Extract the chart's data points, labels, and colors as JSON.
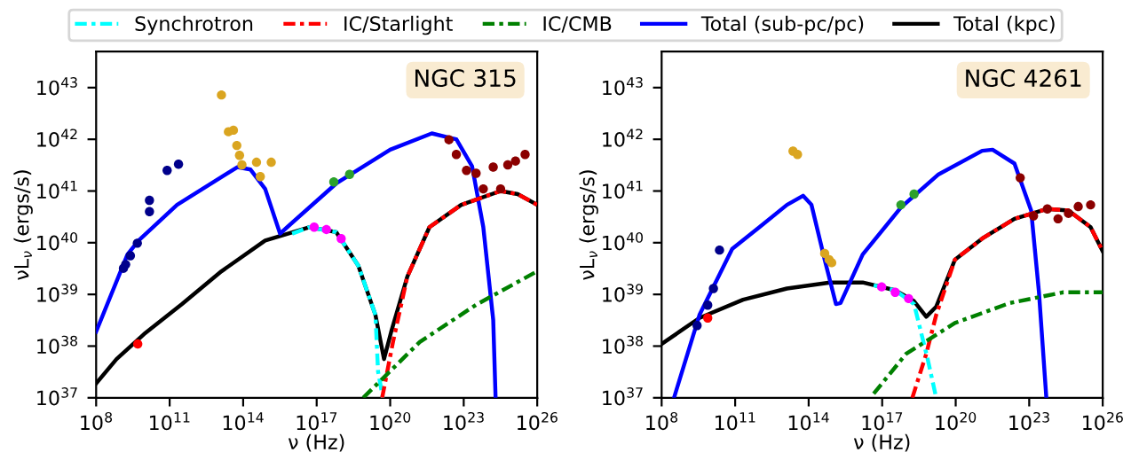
{
  "chart_data": [
    {
      "type": "line",
      "xlabel": "ν (Hz)",
      "ylabel": "νL$_{ν}$ (ergs/s)",
      "log": "xy",
      "legend": "top",
      "annotations": [
        "NGC 315"
      ],
      "xlim": [
        100000000.0,
        1e+26
      ],
      "ylim": [
        1e+37,
        5e+43
      ],
      "xticks": [
        {
          "value": 100000000.0,
          "label": "10$^{8}$"
        },
        {
          "value": 100000000000.0,
          "label": "10$^{11}$"
        },
        {
          "value": 100000000000000.0,
          "label": "10$^{14}$"
        },
        {
          "value": 1e+17,
          "label": "10$^{17}$"
        },
        {
          "value": 1e+20,
          "label": "10$^{20}$"
        },
        {
          "value": 1e+23,
          "label": "10$^{23}$"
        },
        {
          "value": 1e+26,
          "label": "10$^{26}$"
        }
      ],
      "yticks": [
        {
          "value": 1e+37,
          "label": "10$^{37}$"
        },
        {
          "value": 1e+38,
          "label": "10$^{38}$"
        },
        {
          "value": 1e+39,
          "label": "10$^{39}$"
        },
        {
          "value": 1e+40,
          "label": "10$^{40}$"
        },
        {
          "value": 1e+41,
          "label": "10$^{41}$"
        },
        {
          "value": 1e+42,
          "label": "10$^{42}$"
        },
        {
          "value": 1e+43,
          "label": "10$^{43}$"
        }
      ],
      "series": [
        {
          "name": "Total (kpc)",
          "color": "#000000",
          "line_style": "solid",
          "x": [
            100000000.0,
            680000000.0,
            8900000000.0,
            320000000000.0,
            13000000000000.0,
            790000000000000.0,
            5e+16,
            6.3e+17,
            5e+18,
            2.5e+19,
            5.6e+19,
            1.1e+20,
            5e+20,
            4e+21,
            7.9e+22,
            3.2e+24,
            1.6e+25,
            1e+26
          ],
          "values": [
            1.9e+37,
            5.6e+37,
            1.7e+38,
            6.5e+38,
            2.8e+39,
            1.1e+40,
            2e+40,
            1.6e+40,
            3.6e+39,
            4e+38,
            5.6e+37,
            1.9e+38,
            2.2e+39,
            2e+40,
            5.4e+40,
            1e+41,
            8.7e+40,
            5.4e+40
          ]
        },
        {
          "name": "Synchrotron",
          "color": "#00ffff",
          "line_style": "dashdot",
          "x": [
            1e+16,
            5e+16,
            6.3e+17,
            5e+18,
            2.5e+19,
            3.2e+19,
            5e+19
          ],
          "values": [
            1.5e+40,
            2e+40,
            1.6e+40,
            3.6e+39,
            4e+38,
            3.2e+37,
            1e+37
          ]
        },
        {
          "name": "IC/Starlight",
          "color": "#ff0000",
          "line_style": "dashdot",
          "x": [
            4.7e+19,
            1.3e+20,
            5e+20,
            4e+21,
            7.9e+22,
            3.2e+24,
            1.6e+25,
            1e+26
          ],
          "values": [
            1e+37,
            1.2e+38,
            2.2e+39,
            2e+40,
            5.4e+40,
            1e+41,
            8.7e+40,
            5.4e+40
          ]
        },
        {
          "name": "IC/CMB",
          "color": "#008000",
          "line_style": "dashdot",
          "x": [
            7.9e+18,
            1.6e+21,
            3.2e+23,
            1e+26
          ],
          "values": [
            1e+37,
            1.2e+38,
            6.3e+38,
            2.8e+39
          ]
        },
        {
          "name": "Total (sub-pc/pc)",
          "color": "#0000ff",
          "line_style": "solid",
          "x": [
            100000000.0,
            1900000000.0,
            5400000000.0,
            200000000000.0,
            58000000000000.0,
            200000000000000.0,
            790000000000000.0,
            3200000000000000.0,
            6300000000000000.0,
            6.3e+17,
            1e+20,
            5e+21,
            5e+22,
            2.2e+23,
            6.3e+23,
            1.6e+24,
            2e+24
          ],
          "values": [
            1.9e+38,
            5.9e+39,
            1.1e+40,
            5.4e+40,
            2.9e+41,
            2.6e+41,
            1.1e+41,
            1.5e+40,
            2e+40,
            1.4e+41,
            6.3e+41,
            1.3e+42,
            1e+42,
            3e+41,
            2e+40,
            3.2e+38,
            1e+37
          ]
        },
        {
          "type": "scatter",
          "color": "#00008b",
          "marker": "circle",
          "x": [
            1300000000.0,
            1600000000.0,
            2500000000.0,
            4800000000.0,
            15000000000.0,
            15000000000.0,
            79000000000.0,
            230000000000.0
          ],
          "values": [
            3.2e+39,
            3.8e+39,
            5.6e+39,
            9.8e+39,
            6.6e+40,
            4e+40,
            2.5e+41,
            3.3e+41
          ]
        },
        {
          "type": "scatter",
          "color": "#daa520",
          "marker": "circle",
          "x": [
            13000000000000.0,
            25000000000000.0,
            40000000000000.0,
            55000000000000.0,
            71000000000000.0,
            89000000000000.0,
            350000000000000.0,
            500000000000000.0,
            1300000000000000.0,
            1400000000000000.0
          ],
          "values": [
            7.2e+42,
            1.4e+42,
            1.5e+42,
            7.6e+41,
            4.9e+41,
            3.2e+41,
            3.6e+41,
            1.9e+41,
            null,
            3.6e+41
          ]
        },
        {
          "type": "scatter",
          "color": "#ff00ff",
          "marker": "circle",
          "x": [
            7.9e+16,
            2.5e+17,
            1e+18
          ],
          "values": [
            2e+40,
            1.8e+40,
            1.2e+40
          ]
        },
        {
          "type": "scatter",
          "color": "#2ca02c",
          "marker": "circle",
          "x": [
            5e+17,
            2.2e+18
          ],
          "values": [
            1.5e+41,
            2.1e+41
          ]
        },
        {
          "type": "scatter",
          "color": "#ff0000",
          "marker": "circle",
          "x": [
            5000000000.0
          ],
          "values": [
            1.1e+38
          ]
        },
        {
          "type": "scatter",
          "color": "#8b0000",
          "marker": "circle",
          "x": [
            2.5e+22,
            5e+22,
            1.3e+23,
            3.2e+23,
            6.3e+23,
            1.6e+24,
            3.2e+24,
            6.3e+24,
            1.3e+25,
            3.2e+25
          ],
          "values": [
            9.8e+41,
            5.1e+41,
            2.5e+41,
            2.2e+41,
            1.1e+41,
            2.9e+41,
            1.1e+41,
            3.2e+41,
            3.8e+41,
            5.1e+41
          ]
        }
      ]
    },
    {
      "type": "line",
      "xlabel": "ν (Hz)",
      "ylabel": "νL$_{ν}$ (ergs/s)",
      "log": "xy",
      "annotations": [
        "NGC 4261"
      ],
      "xlim": [
        100000000.0,
        1e+26
      ],
      "ylim": [
        1e+37,
        5e+43
      ],
      "xticks": [
        {
          "value": 100000000.0,
          "label": "10$^{8}$"
        },
        {
          "value": 100000000000.0,
          "label": "10$^{11}$"
        },
        {
          "value": 100000000000000.0,
          "label": "10$^{14}$"
        },
        {
          "value": 1e+17,
          "label": "10$^{17}$"
        },
        {
          "value": 1e+20,
          "label": "10$^{20}$"
        },
        {
          "value": 1e+23,
          "label": "10$^{23}$"
        },
        {
          "value": 1e+26,
          "label": "10$^{26}$"
        }
      ],
      "yticks": [
        {
          "value": 1e+37,
          "label": "10$^{37}$"
        },
        {
          "value": 1e+38,
          "label": "10$^{38}$"
        },
        {
          "value": 1e+39,
          "label": "10$^{39}$"
        },
        {
          "value": 1e+40,
          "label": "10$^{40}$"
        },
        {
          "value": 1e+41,
          "label": "10$^{41}$"
        },
        {
          "value": 1e+42,
          "label": "10$^{42}$"
        },
        {
          "value": 1e+43,
          "label": "10$^{43}$"
        }
      ],
      "series": [
        {
          "color": "#000000",
          "line_style": "solid",
          "x": [
            100000000.0,
            3500000000.0,
            210000000000.0,
            13000000000000.0,
            740000000000000.0,
            1.6e+16,
            3.4e+17,
            2e+18,
            6.3e+18,
            1.6e+19,
            9.3e+19,
            1.2e+21,
            2.5e+22,
            5.5e+23,
            4e+24,
            3.2e+25,
            1e+26
          ],
          "values": [
            1.1e+38,
            3.5e+38,
            7.9e+38,
            1.3e+39,
            1.7e+39,
            1.7e+39,
            1.2e+39,
            7.4e+38,
            3.7e+38,
            5.8e+38,
            4.7e+39,
            1.2e+40,
            2.9e+40,
            4.5e+40,
            4.2e+40,
            2e+40,
            6.8e+39
          ]
        },
        {
          "color": "#00ffff",
          "line_style": "dashdot",
          "x": [
            4.5e+16,
            3.4e+17,
            2e+18,
            7.2e+18,
            1.6e+19
          ],
          "values": [
            1.5e+39,
            1.2e+39,
            6.5e+38,
            5.6e+37,
            1e+37
          ]
        },
        {
          "color": "#ff0000",
          "line_style": "dashdot",
          "x": [
            1.7e+18,
            6.3e+18,
            1.6e+19,
            9.3e+19,
            1.2e+21,
            2.5e+22,
            5.5e+23,
            4e+24,
            3.2e+25,
            1e+26
          ],
          "values": [
            1e+37,
            7.1e+37,
            4e+38,
            4.7e+39,
            1.2e+40,
            2.9e+40,
            4.5e+40,
            4.2e+40,
            2e+40,
            6.8e+39
          ]
        },
        {
          "color": "#008000",
          "line_style": "dashdot",
          "x": [
            4.5e+16,
            9.5e+17,
            9.3e+19,
            1.6e+22,
            2.5e+24,
            1e+26
          ],
          "values": [
            1.2e+37,
            7.1e+37,
            2.8e+38,
            6.8e+38,
            1.1e+39,
            1.1e+39
          ]
        },
        {
          "color": "#0000ff",
          "line_style": "solid",
          "x": [
            320000000.0,
            3500000000.0,
            76000000000.0,
            980000000000.0,
            13000000000000.0,
            59000000000000.0,
            130000000000000.0,
            450000000000000.0,
            1300000000000000.0,
            2000000000000000.0,
            1.6e+16,
            5.8e+17,
            2e+19,
            1.2e+21,
            3.2e+21,
            2.5e+22,
            1.2e+23,
            2.5e+23,
            5e+23
          ],
          "values": [
            1e+37,
            4e+38,
            7.6e+39,
            2e+40,
            5.4e+40,
            8.1e+40,
            5.4e+40,
            4.7e+39,
            6.5e+38,
            6.8e+38,
            5.9e+39,
            4.8e+40,
            2.1e+41,
            6e+41,
            6.3e+41,
            3.4e+41,
            4.2e+40,
            1.1e+39,
            1e+37
          ]
        },
        {
          "type": "scatter",
          "color": "#00008b",
          "marker": "circle",
          "x": [
            2800000000.0,
            7600000000.0,
            13000000000.0,
            23000000000.0
          ],
          "values": [
            2.5e+38,
            6.2e+38,
            1.3e+39,
            7.2e+39
          ]
        },
        {
          "type": "scatter",
          "color": "#daa520",
          "marker": "circle",
          "x": [
            23000000000000.0,
            35000000000000.0,
            450000000000000.0,
            680000000000000.0,
            870000000000000.0
          ],
          "values": [
            5.9e+41,
            5.1e+41,
            6.2e+39,
            4.7e+39,
            4.1e+39
          ]
        },
        {
          "type": "scatter",
          "color": "#ff00ff",
          "marker": "circle",
          "x": [
            9.5e+16,
            3.4e+17,
            1.2e+18
          ],
          "values": [
            1.4e+39,
            1.1e+39,
            8.3e+38
          ]
        },
        {
          "type": "scatter",
          "color": "#2ca02c",
          "marker": "circle",
          "x": [
            5.8e+17,
            2e+18
          ],
          "values": [
            5.4e+40,
            8.7e+40
          ]
        },
        {
          "type": "scatter",
          "color": "#ff0000",
          "marker": "circle",
          "x": [
            7600000000.0
          ],
          "values": [
            3.5e+38
          ]
        },
        {
          "type": "scatter",
          "color": "#8b0000",
          "marker": "circle",
          "x": [
            4.3e+22,
            1.5e+23,
            5.5e+23,
            1.5e+24,
            4e+24,
            1e+25,
            3.2e+25
          ],
          "values": [
            1.8e+41,
            3.3e+40,
            4.5e+40,
            2.9e+40,
            3.7e+40,
            5e+40,
            5.4e+40
          ]
        }
      ]
    }
  ]
}
